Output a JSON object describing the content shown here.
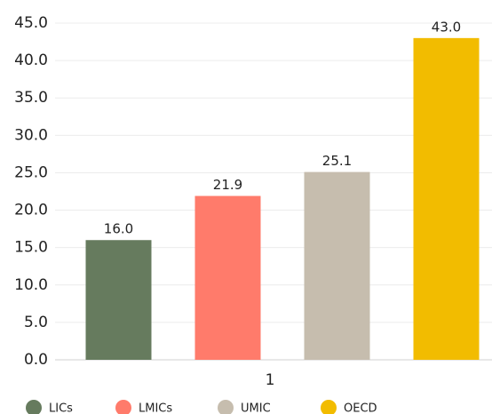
{
  "chart_data": {
    "type": "bar",
    "categories": [
      "1"
    ],
    "series": [
      {
        "name": "LICs",
        "color": "#667b5e",
        "values": [
          16.0
        ],
        "value_labels": [
          "16.0"
        ]
      },
      {
        "name": "LMICs",
        "color": "#ff7b6b",
        "values": [
          21.9
        ],
        "value_labels": [
          "21.9"
        ]
      },
      {
        "name": "UMIC",
        "color": "#c6bdae",
        "values": [
          25.1
        ],
        "value_labels": [
          "25.1"
        ]
      },
      {
        "name": "OECD",
        "color": "#f2bc00",
        "values": [
          43.0
        ],
        "value_labels": [
          "43.0"
        ]
      }
    ],
    "ylim": [
      0,
      45
    ],
    "yticks": [
      {
        "value": 0,
        "label": "0.0"
      },
      {
        "value": 5,
        "label": "5.0"
      },
      {
        "value": 10,
        "label": "10.0"
      },
      {
        "value": 15,
        "label": "15.0"
      },
      {
        "value": 20,
        "label": "20.0"
      },
      {
        "value": 25,
        "label": "25.0"
      },
      {
        "value": 30,
        "label": "30.0"
      },
      {
        "value": 35,
        "label": "35.0"
      },
      {
        "value": 40,
        "label": "40.0"
      },
      {
        "value": 45,
        "label": "45.0"
      }
    ],
    "grid": true,
    "legend": "bottom"
  }
}
